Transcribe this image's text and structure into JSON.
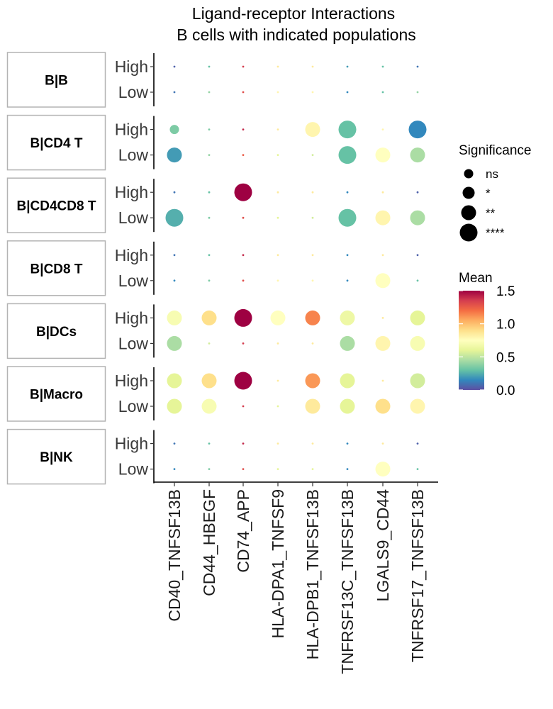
{
  "chart_data": {
    "type": "dotplot",
    "title_line1": "Ligand-receptor Interactions",
    "title_line2": "B cells with indicated populations",
    "x_categories": [
      "CD40_TNFSF13B",
      "CD44_HBEGF",
      "CD74_APP",
      "HLA-DPA1_TNFSF9",
      "HLA-DPB1_TNFSF13B",
      "TNFRSF13C_TNFSF13B",
      "LGALS9_CD44",
      "TNFRSF17_TNFSF13B"
    ],
    "facets": [
      "B|B",
      "B|CD4 T",
      "B|CD4CD8 T",
      "B|CD8 T",
      "B|DCs",
      "B|Macro",
      "B|NK"
    ],
    "levels": [
      "High",
      "Low"
    ],
    "significance_levels": [
      "ns",
      "*",
      "**",
      "****"
    ],
    "legend_size_title": "Significance",
    "legend_color_title": "Mean",
    "color_scale": {
      "min": 0.0,
      "max": 1.5,
      "ticks": [
        "0.0",
        "0.5",
        "1.0",
        "1.5"
      ],
      "palette": "Spectral (reversed)"
    },
    "points": {
      "B|B": {
        "High": [
          [
            0.05,
            "ns"
          ],
          [
            0.3,
            "ns"
          ],
          [
            1.35,
            "ns"
          ],
          [
            0.85,
            "ns"
          ],
          [
            0.85,
            "ns"
          ],
          [
            0.2,
            "ns"
          ],
          [
            0.3,
            "ns"
          ],
          [
            0.1,
            "ns"
          ]
        ],
        "Low": [
          [
            0.1,
            "ns"
          ],
          [
            0.4,
            "ns"
          ],
          [
            1.3,
            "ns"
          ],
          [
            0.8,
            "ns"
          ],
          [
            0.8,
            "ns"
          ],
          [
            0.15,
            "ns"
          ],
          [
            0.3,
            "ns"
          ],
          [
            0.4,
            "ns"
          ]
        ]
      },
      "B|CD4 T": {
        "High": [
          [
            0.35,
            "*"
          ],
          [
            0.35,
            "ns"
          ],
          [
            1.4,
            "ns"
          ],
          [
            0.85,
            "ns"
          ],
          [
            0.8,
            "**"
          ],
          [
            0.3,
            "****"
          ],
          [
            0.8,
            "ns"
          ],
          [
            0.15,
            "****"
          ]
        ],
        "Low": [
          [
            0.2,
            "**"
          ],
          [
            0.4,
            "ns"
          ],
          [
            1.25,
            "ns"
          ],
          [
            0.6,
            "ns"
          ],
          [
            0.55,
            "ns"
          ],
          [
            0.3,
            "****"
          ],
          [
            0.75,
            "**"
          ],
          [
            0.45,
            "**"
          ]
        ]
      },
      "B|CD4CD8 T": {
        "High": [
          [
            0.1,
            "ns"
          ],
          [
            0.3,
            "ns"
          ],
          [
            1.5,
            "****"
          ],
          [
            0.85,
            "ns"
          ],
          [
            0.85,
            "ns"
          ],
          [
            0.15,
            "ns"
          ],
          [
            0.85,
            "ns"
          ],
          [
            0.05,
            "ns"
          ]
        ],
        "Low": [
          [
            0.25,
            "****"
          ],
          [
            0.35,
            "ns"
          ],
          [
            1.3,
            "ns"
          ],
          [
            0.6,
            "ns"
          ],
          [
            0.55,
            "ns"
          ],
          [
            0.3,
            "****"
          ],
          [
            0.8,
            "**"
          ],
          [
            0.45,
            "**"
          ]
        ]
      },
      "B|CD8 T": {
        "High": [
          [
            0.1,
            "ns"
          ],
          [
            0.3,
            "ns"
          ],
          [
            1.4,
            "ns"
          ],
          [
            0.85,
            "ns"
          ],
          [
            0.85,
            "ns"
          ],
          [
            0.15,
            "ns"
          ],
          [
            0.85,
            "ns"
          ],
          [
            0.05,
            "ns"
          ]
        ],
        "Low": [
          [
            0.15,
            "ns"
          ],
          [
            0.35,
            "ns"
          ],
          [
            1.3,
            "ns"
          ],
          [
            0.8,
            "ns"
          ],
          [
            0.8,
            "ns"
          ],
          [
            0.15,
            "ns"
          ],
          [
            0.75,
            "**"
          ],
          [
            0.3,
            "ns"
          ]
        ]
      },
      "B|DCs": {
        "High": [
          [
            0.7,
            "**"
          ],
          [
            0.9,
            "**"
          ],
          [
            1.5,
            "****"
          ],
          [
            0.75,
            "**"
          ],
          [
            1.15,
            "**"
          ],
          [
            0.65,
            "**"
          ],
          [
            0.85,
            "ns"
          ],
          [
            0.6,
            "**"
          ]
        ],
        "Low": [
          [
            0.45,
            "**"
          ],
          [
            0.55,
            "ns"
          ],
          [
            1.35,
            "ns"
          ],
          [
            0.85,
            "ns"
          ],
          [
            0.85,
            "ns"
          ],
          [
            0.45,
            "**"
          ],
          [
            0.8,
            "**"
          ],
          [
            0.7,
            "**"
          ]
        ]
      },
      "B|Macro": {
        "High": [
          [
            0.6,
            "**"
          ],
          [
            0.9,
            "**"
          ],
          [
            1.5,
            "****"
          ],
          [
            0.85,
            "ns"
          ],
          [
            1.1,
            "**"
          ],
          [
            0.6,
            "**"
          ],
          [
            0.85,
            "ns"
          ],
          [
            0.55,
            "**"
          ]
        ],
        "Low": [
          [
            0.6,
            "**"
          ],
          [
            0.7,
            "**"
          ],
          [
            1.35,
            "ns"
          ],
          [
            0.6,
            "ns"
          ],
          [
            0.85,
            "**"
          ],
          [
            0.6,
            "**"
          ],
          [
            0.9,
            "**"
          ],
          [
            0.8,
            "**"
          ]
        ]
      },
      "B|NK": {
        "High": [
          [
            0.1,
            "ns"
          ],
          [
            0.3,
            "ns"
          ],
          [
            1.4,
            "ns"
          ],
          [
            0.85,
            "ns"
          ],
          [
            0.85,
            "ns"
          ],
          [
            0.15,
            "ns"
          ],
          [
            0.85,
            "ns"
          ],
          [
            0.05,
            "ns"
          ]
        ],
        "Low": [
          [
            0.15,
            "ns"
          ],
          [
            0.35,
            "ns"
          ],
          [
            1.3,
            "ns"
          ],
          [
            0.6,
            "ns"
          ],
          [
            0.6,
            "ns"
          ],
          [
            0.15,
            "ns"
          ],
          [
            0.75,
            "**"
          ],
          [
            0.3,
            "ns"
          ]
        ]
      }
    }
  }
}
